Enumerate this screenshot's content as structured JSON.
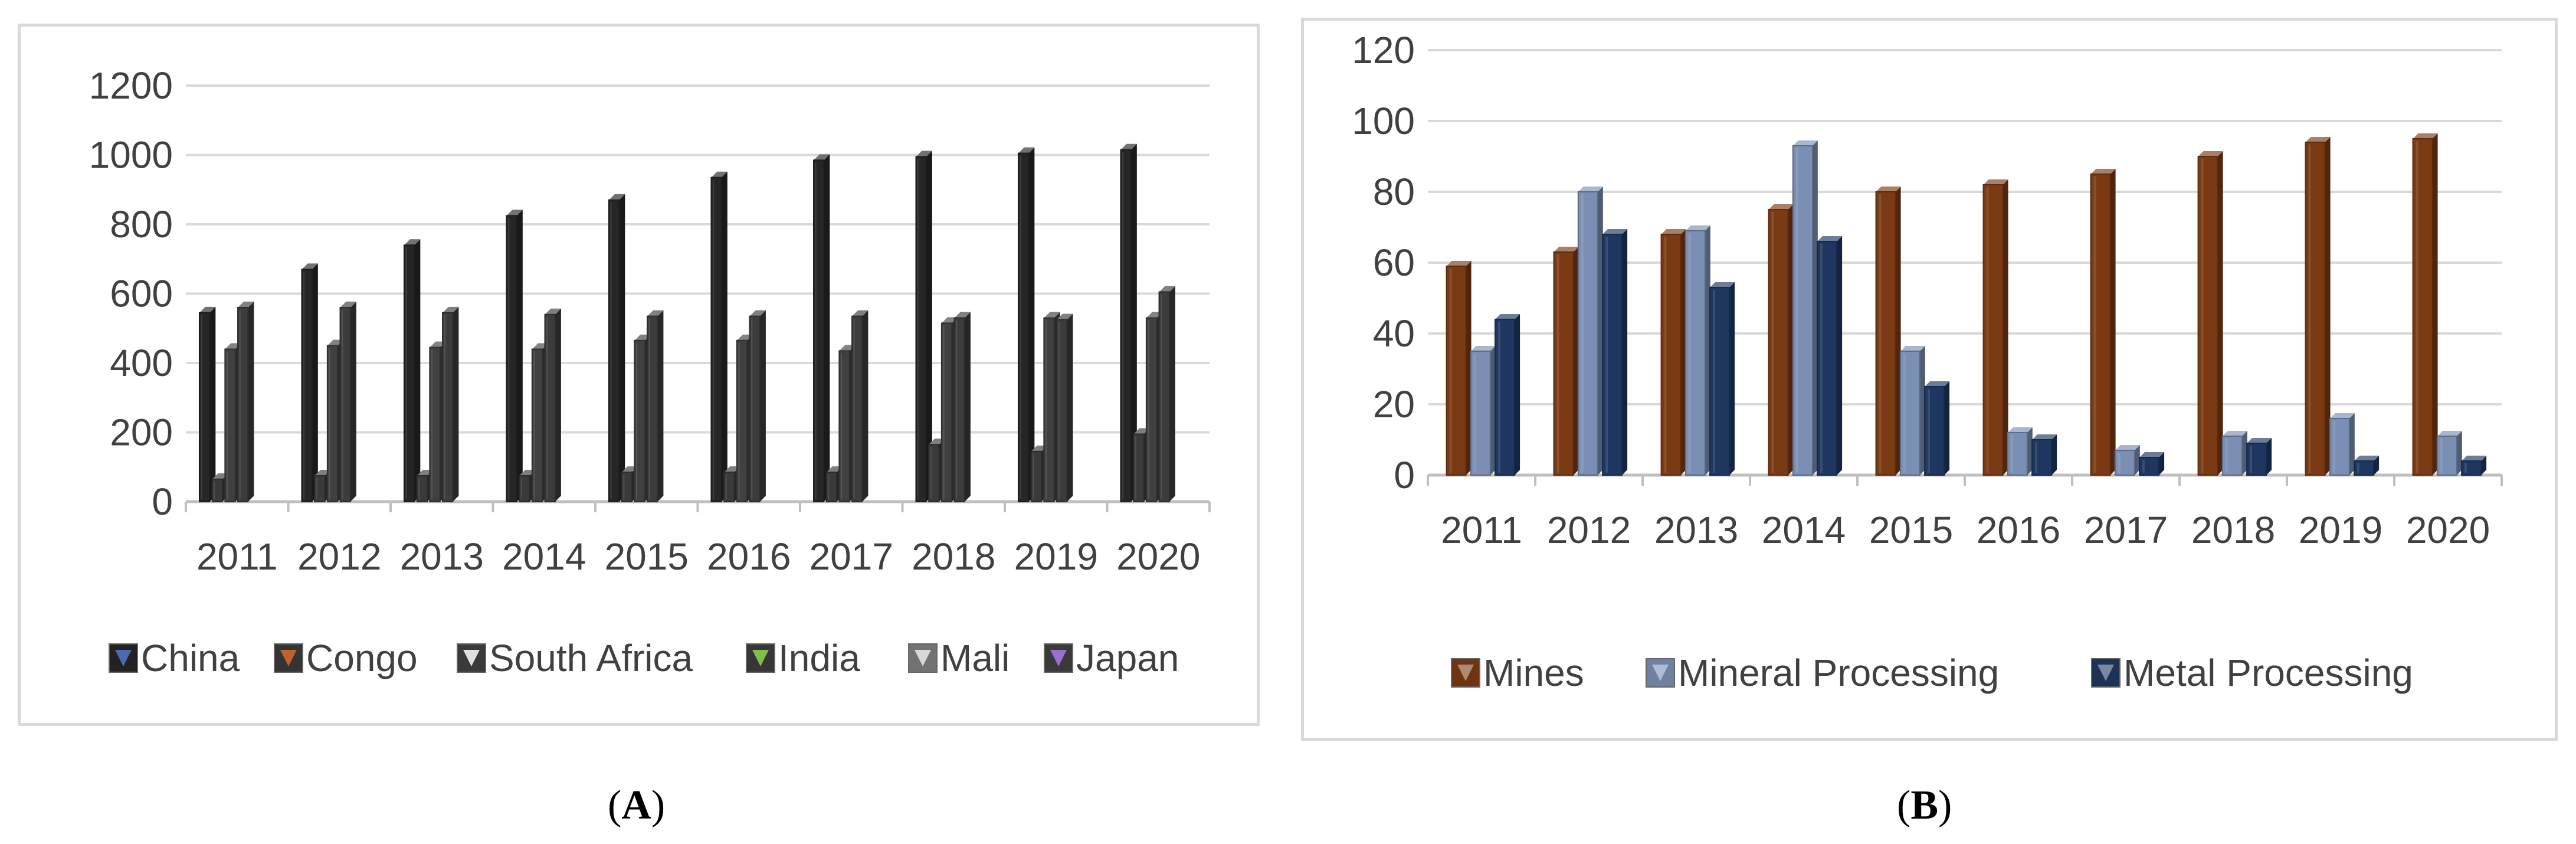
{
  "captions": {
    "a_label": "A",
    "b_label": "B"
  },
  "colors": {
    "china": "#262626",
    "congo": "#3a3a3a",
    "south_africa": "#404040",
    "india": "#3c3c3c",
    "mali": "#7f7f7f",
    "japan": "#404040",
    "mines": "#7a3b14",
    "mineral": "#7a8fb3",
    "metal": "#1f3760",
    "grid": "#d9d9d9"
  },
  "chart_data": [
    {
      "type": "bar",
      "id": "A",
      "title": "",
      "xlabel": "",
      "ylabel": "",
      "categories": [
        "2011",
        "2012",
        "2013",
        "2014",
        "2015",
        "2016",
        "2017",
        "2018",
        "2019",
        "2020"
      ],
      "ylim": [
        0,
        1200
      ],
      "yticks": [
        "0",
        "200",
        "400",
        "600",
        "800",
        "1000",
        "1200"
      ],
      "legend_position": "bottom",
      "series": [
        {
          "name": "China",
          "values": [
            545,
            670,
            740,
            825,
            870,
            935,
            985,
            995,
            1005,
            1015
          ]
        },
        {
          "name": "Congo",
          "values": [
            65,
            75,
            75,
            75,
            85,
            85,
            85,
            165,
            145,
            195
          ]
        },
        {
          "name": "South Africa",
          "values": [
            440,
            450,
            445,
            440,
            465,
            465,
            435,
            515,
            530,
            530
          ]
        },
        {
          "name": "India",
          "values": [
            560,
            560,
            545,
            540,
            535,
            535,
            535,
            530,
            525,
            605
          ]
        },
        {
          "name": "Mali",
          "values": [
            0,
            0,
            0,
            0,
            0,
            0,
            0,
            0,
            0,
            0
          ]
        },
        {
          "name": "Japan",
          "values": [
            0,
            0,
            0,
            0,
            0,
            0,
            0,
            0,
            0,
            0
          ]
        }
      ]
    },
    {
      "type": "bar",
      "id": "B",
      "title": "",
      "xlabel": "",
      "ylabel": "",
      "categories": [
        "2011",
        "2012",
        "2013",
        "2014",
        "2015",
        "2016",
        "2017",
        "2018",
        "2019",
        "2020"
      ],
      "ylim": [
        0,
        120
      ],
      "yticks": [
        "0",
        "20",
        "40",
        "60",
        "80",
        "100",
        "120"
      ],
      "legend_position": "bottom",
      "series": [
        {
          "name": "Mines",
          "values": [
            59,
            63,
            68,
            75,
            80,
            82,
            85,
            90,
            94,
            95
          ]
        },
        {
          "name": "Mineral Processing",
          "values": [
            35,
            80,
            69,
            93,
            35,
            12,
            7,
            11,
            16,
            11
          ]
        },
        {
          "name": "Metal Processing",
          "values": [
            44,
            68,
            53,
            66,
            25,
            10,
            5,
            9,
            4,
            4
          ]
        }
      ]
    }
  ]
}
